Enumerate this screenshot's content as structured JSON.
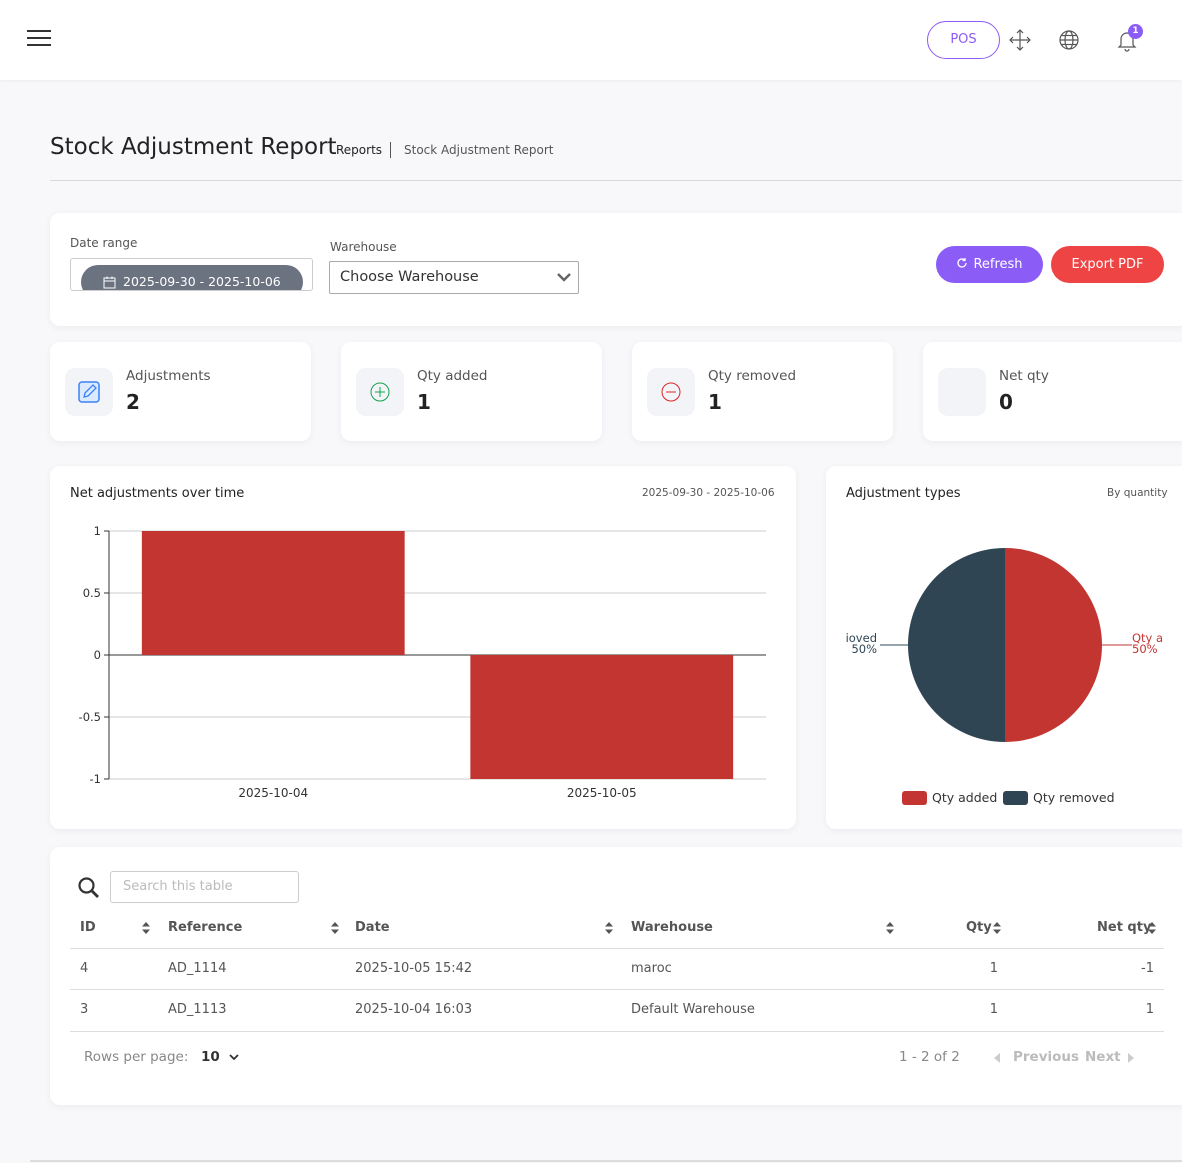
{
  "header": {
    "pos_label": "POS",
    "notification_count": "1"
  },
  "page": {
    "title": "Stock Adjustment Report",
    "breadcrumb_parent": "Reports",
    "breadcrumb_current": "Stock Adjustment Report"
  },
  "filters": {
    "date_label": "Date range",
    "date_value": "2025-09-30 - 2025-10-06",
    "warehouse_label": "Warehouse",
    "warehouse_value": "Choose Warehouse",
    "refresh_label": "Refresh",
    "export_label": "Export PDF"
  },
  "stats": [
    {
      "label": "Adjustments",
      "value": "2"
    },
    {
      "label": "Qty added",
      "value": "1"
    },
    {
      "label": "Qty removed",
      "value": "1"
    },
    {
      "label": "Net qty",
      "value": "0"
    }
  ],
  "colors": {
    "accent": "#8b5cf6",
    "danger": "#ef4444",
    "bar": "#c23531",
    "dark": "#2f4554"
  },
  "chart_data": [
    {
      "type": "bar",
      "title": "Net adjustments over time",
      "subtitle": "2025-09-30 - 2025-10-06",
      "categories": [
        "2025-10-04",
        "2025-10-05"
      ],
      "values": [
        1,
        -1
      ],
      "ylim": [
        -1,
        1
      ],
      "yticks": [
        "1",
        "0.5",
        "0",
        "-0.5",
        "-1"
      ],
      "grid": true
    },
    {
      "type": "pie",
      "title": "Adjustment types",
      "subtitle": "By quantity",
      "slices": [
        {
          "name": "Qty added",
          "value": 1,
          "percent": "50%"
        },
        {
          "name": "Qty removed",
          "value": 1,
          "percent": "50%"
        }
      ],
      "label_left_name": "ioved",
      "label_right_name": "Qty a",
      "legend_position": "bottom"
    }
  ],
  "table": {
    "search_placeholder": "Search this table",
    "columns": [
      "ID",
      "Reference",
      "Date",
      "Warehouse",
      "Qty",
      "Net qty"
    ],
    "rows": [
      [
        "4",
        "AD_1114",
        "2025-10-05 15:42",
        "maroc",
        "1",
        "-1"
      ],
      [
        "3",
        "AD_1113",
        "2025-10-04 16:03",
        "Default Warehouse",
        "1",
        "1"
      ]
    ],
    "rows_per_page_label": "Rows per page:",
    "rows_per_page_value": "10",
    "range_text": "1 - 2 of 2",
    "prev_label": "Previous",
    "next_label": "Next"
  }
}
